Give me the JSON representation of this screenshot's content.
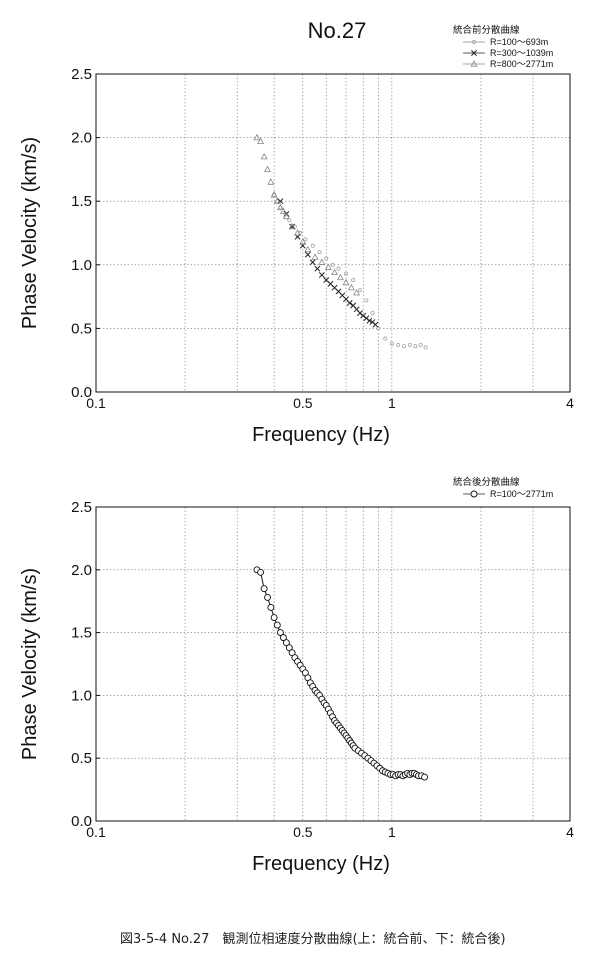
{
  "caption": "図3-5-4 No.27　観測位相速度分散曲線(上：統合前、下：統合後)",
  "chart_data": [
    {
      "type": "scatter",
      "title": "No.27",
      "xlabel": "Frequency (Hz)",
      "ylabel": "Phase Velocity (km/s)",
      "xscale": "log",
      "xlim": [
        0.1,
        4
      ],
      "ylim": [
        0,
        2.5
      ],
      "x_tick_labels": [
        "0.1",
        "0.5",
        "1",
        "4"
      ],
      "y_tick_labels": [
        "0.0",
        "0.5",
        "1.0",
        "1.5",
        "2.0",
        "2.5"
      ],
      "grid": true,
      "legend_title": "統合前分散曲線",
      "legend_position": "top-right",
      "series": [
        {
          "name": "R=100～693m",
          "marker": "dot",
          "x": [
            0.4,
            0.41,
            0.42,
            0.44,
            0.45,
            0.47,
            0.49,
            0.51,
            0.54,
            0.57,
            0.6,
            0.63,
            0.66,
            0.7,
            0.74,
            0.78,
            0.82,
            0.86,
            0.9,
            0.95,
            1.0,
            1.05,
            1.1,
            1.15,
            1.2,
            1.25,
            1.3
          ],
          "y": [
            1.55,
            1.5,
            1.45,
            1.4,
            1.35,
            1.3,
            1.25,
            1.2,
            1.15,
            1.1,
            1.05,
            1.0,
            0.97,
            0.93,
            0.88,
            0.8,
            0.72,
            0.62,
            0.5,
            0.42,
            0.38,
            0.37,
            0.36,
            0.37,
            0.36,
            0.37,
            0.35
          ]
        },
        {
          "name": "R=300～1039m",
          "marker": "x",
          "x": [
            0.42,
            0.44,
            0.46,
            0.48,
            0.5,
            0.52,
            0.54,
            0.56,
            0.58,
            0.6,
            0.62,
            0.64,
            0.66,
            0.68,
            0.7,
            0.72,
            0.74,
            0.76,
            0.78,
            0.8,
            0.82,
            0.84,
            0.86,
            0.88
          ],
          "y": [
            1.5,
            1.4,
            1.3,
            1.22,
            1.15,
            1.08,
            1.02,
            0.97,
            0.92,
            0.88,
            0.85,
            0.82,
            0.79,
            0.76,
            0.73,
            0.7,
            0.68,
            0.65,
            0.62,
            0.6,
            0.58,
            0.56,
            0.55,
            0.53
          ]
        },
        {
          "name": "R=800～2771m",
          "marker": "triangle",
          "x": [
            0.35,
            0.36,
            0.37,
            0.38,
            0.39,
            0.4,
            0.41,
            0.42,
            0.43,
            0.44,
            0.46,
            0.48,
            0.5,
            0.52,
            0.55,
            0.58,
            0.61,
            0.64,
            0.67,
            0.7,
            0.73,
            0.76
          ],
          "y": [
            2.0,
            1.97,
            1.85,
            1.75,
            1.65,
            1.55,
            1.5,
            1.45,
            1.42,
            1.38,
            1.3,
            1.25,
            1.18,
            1.12,
            1.06,
            1.02,
            0.98,
            0.94,
            0.9,
            0.86,
            0.82,
            0.78
          ]
        }
      ]
    },
    {
      "type": "line",
      "title": "",
      "xlabel": "Frequency (Hz)",
      "ylabel": "Phase Velocity (km/s)",
      "xscale": "log",
      "xlim": [
        0.1,
        4
      ],
      "ylim": [
        0,
        2.5
      ],
      "x_tick_labels": [
        "0.1",
        "0.5",
        "1",
        "4"
      ],
      "y_tick_labels": [
        "0.0",
        "0.5",
        "1.0",
        "1.5",
        "2.0",
        "2.5"
      ],
      "grid": true,
      "legend_title": "統合後分散曲線",
      "legend_position": "top-right",
      "series": [
        {
          "name": "R=100～2771m",
          "marker": "circle",
          "x": [
            0.35,
            0.36,
            0.37,
            0.38,
            0.39,
            0.4,
            0.41,
            0.42,
            0.43,
            0.44,
            0.45,
            0.46,
            0.47,
            0.48,
            0.49,
            0.5,
            0.51,
            0.52,
            0.53,
            0.54,
            0.55,
            0.56,
            0.57,
            0.58,
            0.59,
            0.6,
            0.61,
            0.62,
            0.63,
            0.64,
            0.65,
            0.66,
            0.67,
            0.68,
            0.69,
            0.7,
            0.71,
            0.72,
            0.73,
            0.74,
            0.75,
            0.77,
            0.79,
            0.81,
            0.83,
            0.85,
            0.87,
            0.89,
            0.91,
            0.93,
            0.95,
            0.97,
            0.99,
            1.01,
            1.03,
            1.05,
            1.07,
            1.09,
            1.11,
            1.13,
            1.15,
            1.17,
            1.19,
            1.21,
            1.23,
            1.26,
            1.29
          ],
          "y": [
            2.0,
            1.98,
            1.85,
            1.78,
            1.7,
            1.62,
            1.56,
            1.5,
            1.46,
            1.42,
            1.38,
            1.34,
            1.3,
            1.27,
            1.24,
            1.21,
            1.18,
            1.14,
            1.1,
            1.07,
            1.04,
            1.02,
            1.0,
            0.97,
            0.94,
            0.92,
            0.89,
            0.86,
            0.83,
            0.8,
            0.78,
            0.76,
            0.74,
            0.72,
            0.7,
            0.68,
            0.66,
            0.64,
            0.62,
            0.6,
            0.58,
            0.56,
            0.54,
            0.52,
            0.5,
            0.48,
            0.46,
            0.44,
            0.42,
            0.4,
            0.39,
            0.38,
            0.37,
            0.37,
            0.36,
            0.37,
            0.37,
            0.36,
            0.37,
            0.38,
            0.37,
            0.38,
            0.38,
            0.37,
            0.36,
            0.36,
            0.35
          ]
        }
      ]
    }
  ]
}
